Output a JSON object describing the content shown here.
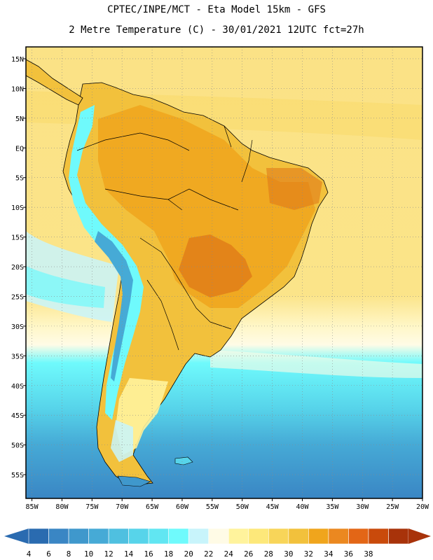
{
  "header": {
    "line1": "CPTEC/INPE/MCT -  Eta Model 15km - GFS",
    "line2": "2 Metre Temperature (C) - 30/01/2021 12UTC fct=27h"
  },
  "axes": {
    "lat_labels": [
      "15N",
      "10N",
      "5N",
      "EQ",
      "5S",
      "10S",
      "15S",
      "20S",
      "25S",
      "30S",
      "35S",
      "40S",
      "45S",
      "50S",
      "55S"
    ],
    "lon_labels": [
      "85W",
      "80W",
      "75W",
      "70W",
      "65W",
      "60W",
      "55W",
      "50W",
      "45W",
      "40W",
      "35W",
      "30W",
      "25W",
      "20W"
    ],
    "lat_range": [
      17,
      -59
    ],
    "lon_range": [
      -86,
      -20
    ],
    "lat_values": [
      15,
      10,
      5,
      0,
      -5,
      -10,
      -15,
      -20,
      -25,
      -30,
      -35,
      -40,
      -45,
      -50,
      -55
    ],
    "lon_values": [
      -85,
      -80,
      -75,
      -70,
      -65,
      -60,
      -55,
      -50,
      -45,
      -40,
      -35,
      -30,
      -25,
      -20
    ],
    "grid": "dotted"
  },
  "colorbar": {
    "labels": [
      "4",
      "6",
      "8",
      "10",
      "12",
      "14",
      "16",
      "18",
      "20",
      "22",
      "24",
      "26",
      "28",
      "30",
      "32",
      "34",
      "36",
      "38"
    ],
    "colors": [
      "#2a6bb0",
      "#3a86c4",
      "#3f98cc",
      "#46aad6",
      "#4fc0e0",
      "#57d4ea",
      "#61e6f2",
      "#6ffafc",
      "#c8f4fb",
      "#fffbe6",
      "#fff39c",
      "#fde87a",
      "#f8d559",
      "#f2c13c",
      "#f0a51c",
      "#eb8820",
      "#e36616",
      "#c94a0b",
      "#a8330a"
    ],
    "low_color": "#2a6bb0",
    "high_color": "#a8330a"
  },
  "map": {
    "ocean_color": "#fbe489",
    "land_colors": [
      "#f2c13c",
      "#f0a51c",
      "#e07a18",
      "#6ffafc",
      "#46aad6"
    ]
  }
}
